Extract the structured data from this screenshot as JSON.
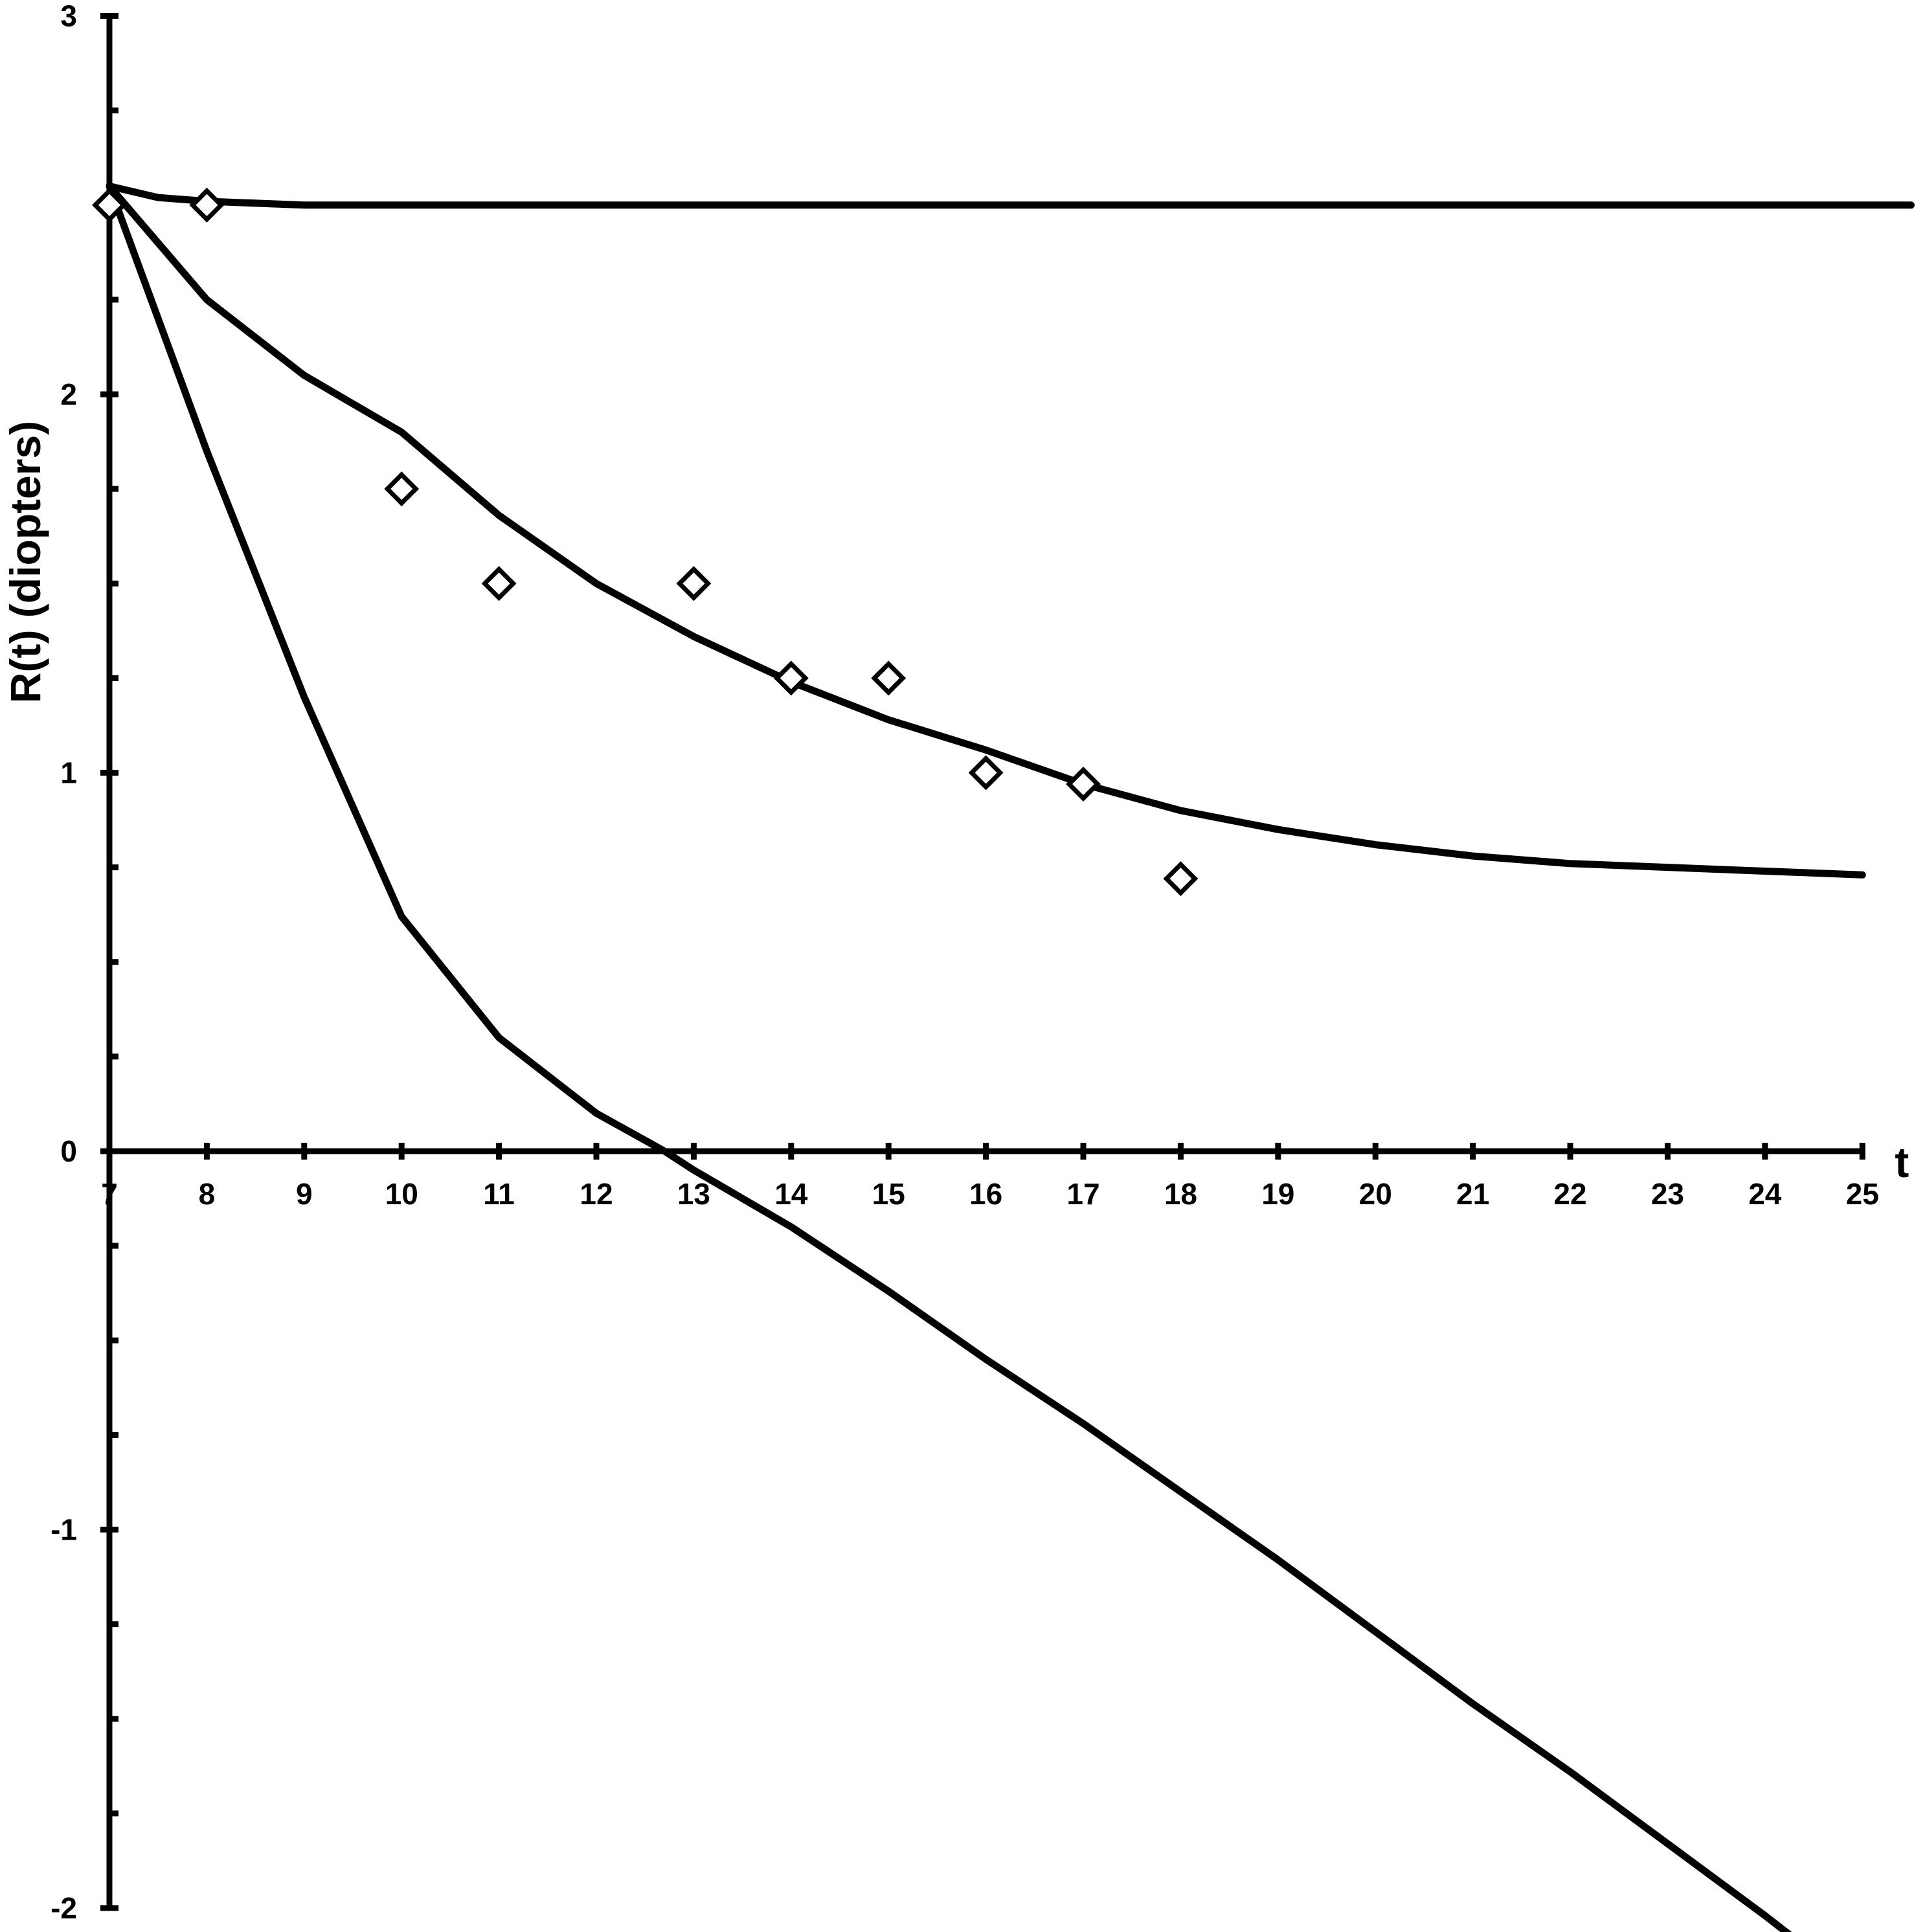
{
  "chart_data": {
    "type": "line",
    "title": "",
    "xlabel": "t",
    "ylabel": "R(t)  (diopters)",
    "xlim": [
      7,
      25
    ],
    "ylim": [
      -2,
      3
    ],
    "x_ticks": [
      7,
      8,
      9,
      10,
      11,
      12,
      13,
      14,
      15,
      16,
      17,
      18,
      19,
      20,
      21,
      22,
      23,
      24,
      25
    ],
    "y_ticks": [
      -2,
      -1,
      0,
      1,
      2,
      3
    ],
    "grid": false,
    "legend": "none",
    "series": [
      {
        "kind": "line",
        "x": [
          7,
          7.5,
          8,
          9,
          10,
          11,
          12,
          13,
          14,
          15,
          16,
          17,
          18,
          19,
          20,
          21,
          22,
          23,
          24,
          25,
          25.5
        ],
        "values": [
          2.55,
          2.52,
          2.51,
          2.5,
          2.5,
          2.5,
          2.5,
          2.5,
          2.5,
          2.5,
          2.5,
          2.5,
          2.5,
          2.5,
          2.5,
          2.5,
          2.5,
          2.5,
          2.5,
          2.5,
          2.5
        ]
      },
      {
        "kind": "line",
        "x": [
          7,
          8,
          9,
          10,
          11,
          12,
          13,
          14,
          15,
          16,
          17,
          18,
          19,
          20,
          21,
          22,
          23,
          24,
          25
        ],
        "values": [
          2.55,
          2.25,
          2.05,
          1.9,
          1.68,
          1.5,
          1.36,
          1.24,
          1.14,
          1.06,
          0.97,
          0.9,
          0.85,
          0.81,
          0.78,
          0.76,
          0.75,
          0.74,
          0.73
        ]
      },
      {
        "kind": "line",
        "x": [
          7,
          8,
          9,
          10,
          11,
          12,
          12.7,
          13,
          14,
          15,
          16,
          17,
          18,
          19,
          20,
          21,
          22,
          23,
          24,
          25,
          25.25
        ],
        "values": [
          2.55,
          1.85,
          1.2,
          0.62,
          0.3,
          0.1,
          0.0,
          -0.05,
          -0.2,
          -0.37,
          -0.55,
          -0.72,
          -0.9,
          -1.08,
          -1.27,
          -1.46,
          -1.64,
          -1.83,
          -2.02,
          -2.22,
          -2.27
        ]
      },
      {
        "kind": "scatter",
        "marker": "diamond",
        "x": [
          7,
          8,
          10,
          11,
          13,
          14,
          15,
          16,
          17,
          18
        ],
        "values": [
          2.5,
          2.5,
          1.75,
          1.5,
          1.5,
          1.25,
          1.25,
          1.0,
          0.97,
          0.72
        ]
      }
    ]
  }
}
